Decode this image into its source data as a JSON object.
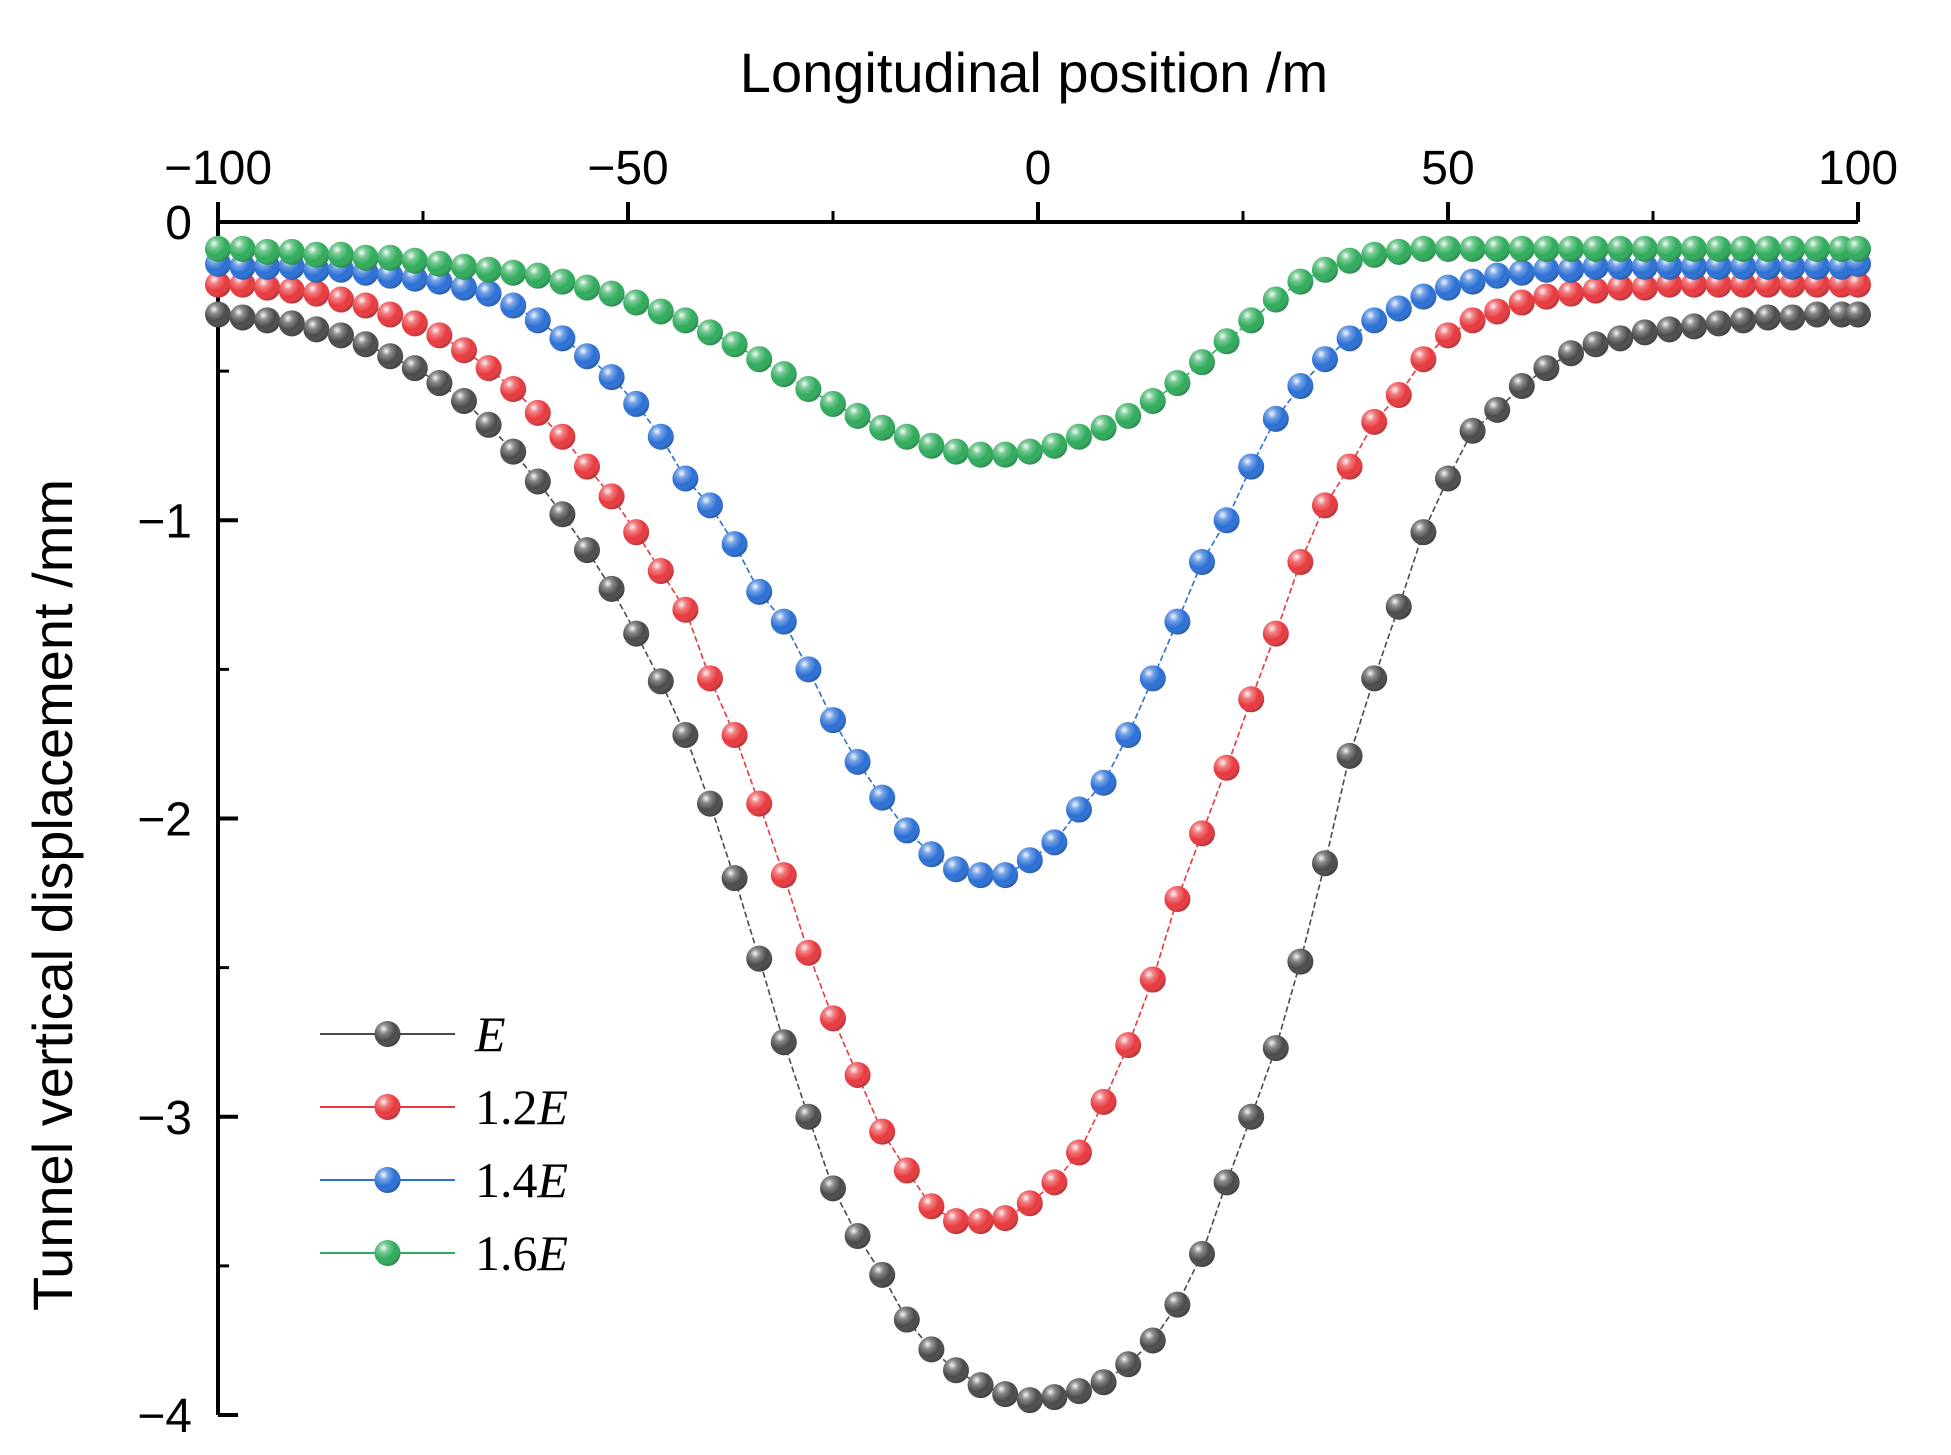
{
  "chart_data": {
    "type": "line",
    "title": "",
    "xlabel": "Longitudinal position /m",
    "ylabel": "Tunnel vertical displacement /mm",
    "xlim": [
      -100,
      100
    ],
    "ylim": [
      -4,
      0
    ],
    "x_ticks": [
      -100,
      -50,
      0,
      50,
      100
    ],
    "x_tick_labels": [
      "−100",
      "−50",
      "0",
      "50",
      "100"
    ],
    "y_ticks": [
      0,
      -1,
      -2,
      -3,
      -4
    ],
    "y_tick_labels": [
      "0",
      "−1",
      "−2",
      "−3",
      "−4"
    ],
    "x_axis_position": "top",
    "grid": false,
    "legend_position": "bottom-left",
    "x": [
      -100,
      -97,
      -94,
      -91,
      -88,
      -85,
      -82,
      -79,
      -76,
      -73,
      -70,
      -67,
      -64,
      -61,
      -58,
      -55,
      -52,
      -49,
      -46,
      -43,
      -40,
      -37,
      -34,
      -31,
      -28,
      -25,
      -22,
      -19,
      -16,
      -13,
      -10,
      -7,
      -4,
      -1,
      2,
      5,
      8,
      11,
      14,
      17,
      20,
      23,
      26,
      29,
      32,
      35,
      38,
      41,
      44,
      47,
      50,
      53,
      56,
      59,
      62,
      65,
      68,
      71,
      74,
      77,
      80,
      83,
      86,
      89,
      92,
      95,
      98,
      100
    ],
    "series": [
      {
        "name": "E",
        "color": "#4a4a4a",
        "values": [
          -0.31,
          -0.32,
          -0.33,
          -0.34,
          -0.36,
          -0.38,
          -0.41,
          -0.45,
          -0.49,
          -0.54,
          -0.6,
          -0.68,
          -0.77,
          -0.87,
          -0.98,
          -1.1,
          -1.23,
          -1.38,
          -1.54,
          -1.72,
          -1.95,
          -2.2,
          -2.47,
          -2.75,
          -3.0,
          -3.24,
          -3.4,
          -3.53,
          -3.68,
          -3.78,
          -3.85,
          -3.9,
          -3.93,
          -3.95,
          -3.94,
          -3.92,
          -3.89,
          -3.83,
          -3.75,
          -3.63,
          -3.46,
          -3.22,
          -3.0,
          -2.77,
          -2.48,
          -2.15,
          -1.79,
          -1.53,
          -1.29,
          -1.04,
          -0.86,
          -0.7,
          -0.63,
          -0.55,
          -0.49,
          -0.44,
          -0.41,
          -0.39,
          -0.37,
          -0.36,
          -0.35,
          -0.34,
          -0.33,
          -0.32,
          -0.32,
          -0.31,
          -0.31,
          -0.31
        ]
      },
      {
        "name": "1.2E",
        "color": "#e8383d",
        "values": [
          -0.21,
          -0.21,
          -0.22,
          -0.23,
          -0.24,
          -0.26,
          -0.28,
          -0.31,
          -0.34,
          -0.38,
          -0.43,
          -0.49,
          -0.56,
          -0.64,
          -0.72,
          -0.82,
          -0.92,
          -1.04,
          -1.17,
          -1.3,
          -1.53,
          -1.72,
          -1.95,
          -2.19,
          -2.45,
          -2.67,
          -2.86,
          -3.05,
          -3.18,
          -3.3,
          -3.35,
          -3.35,
          -3.34,
          -3.29,
          -3.22,
          -3.12,
          -2.95,
          -2.76,
          -2.54,
          -2.27,
          -2.05,
          -1.83,
          -1.6,
          -1.38,
          -1.14,
          -0.95,
          -0.82,
          -0.67,
          -0.58,
          -0.46,
          -0.38,
          -0.33,
          -0.3,
          -0.27,
          -0.25,
          -0.24,
          -0.23,
          -0.22,
          -0.22,
          -0.21,
          -0.21,
          -0.21,
          -0.21,
          -0.21,
          -0.21,
          -0.21,
          -0.21,
          -0.21
        ]
      },
      {
        "name": "1.4E",
        "color": "#2a6fd6",
        "values": [
          -0.14,
          -0.15,
          -0.15,
          -0.15,
          -0.16,
          -0.16,
          -0.17,
          -0.18,
          -0.19,
          -0.2,
          -0.22,
          -0.24,
          -0.28,
          -0.33,
          -0.39,
          -0.45,
          -0.52,
          -0.61,
          -0.72,
          -0.86,
          -0.95,
          -1.08,
          -1.24,
          -1.34,
          -1.5,
          -1.67,
          -1.81,
          -1.93,
          -2.04,
          -2.12,
          -2.17,
          -2.19,
          -2.19,
          -2.14,
          -2.08,
          -1.97,
          -1.88,
          -1.72,
          -1.53,
          -1.34,
          -1.14,
          -1.0,
          -0.82,
          -0.66,
          -0.55,
          -0.46,
          -0.39,
          -0.33,
          -0.29,
          -0.25,
          -0.22,
          -0.2,
          -0.18,
          -0.17,
          -0.16,
          -0.16,
          -0.15,
          -0.15,
          -0.15,
          -0.15,
          -0.15,
          -0.15,
          -0.15,
          -0.15,
          -0.15,
          -0.15,
          -0.15,
          -0.14
        ]
      },
      {
        "name": "1.6E",
        "color": "#2eab5b",
        "values": [
          -0.09,
          -0.09,
          -0.1,
          -0.1,
          -0.11,
          -0.11,
          -0.12,
          -0.12,
          -0.13,
          -0.14,
          -0.15,
          -0.16,
          -0.17,
          -0.18,
          -0.2,
          -0.22,
          -0.24,
          -0.27,
          -0.3,
          -0.33,
          -0.37,
          -0.41,
          -0.46,
          -0.51,
          -0.56,
          -0.61,
          -0.65,
          -0.69,
          -0.72,
          -0.75,
          -0.77,
          -0.78,
          -0.78,
          -0.77,
          -0.75,
          -0.72,
          -0.69,
          -0.65,
          -0.6,
          -0.54,
          -0.47,
          -0.4,
          -0.33,
          -0.26,
          -0.2,
          -0.16,
          -0.13,
          -0.11,
          -0.1,
          -0.09,
          -0.09,
          -0.09,
          -0.09,
          -0.09,
          -0.09,
          -0.09,
          -0.09,
          -0.09,
          -0.09,
          -0.09,
          -0.09,
          -0.09,
          -0.09,
          -0.09,
          -0.09,
          -0.09,
          -0.09,
          -0.09
        ]
      }
    ]
  }
}
